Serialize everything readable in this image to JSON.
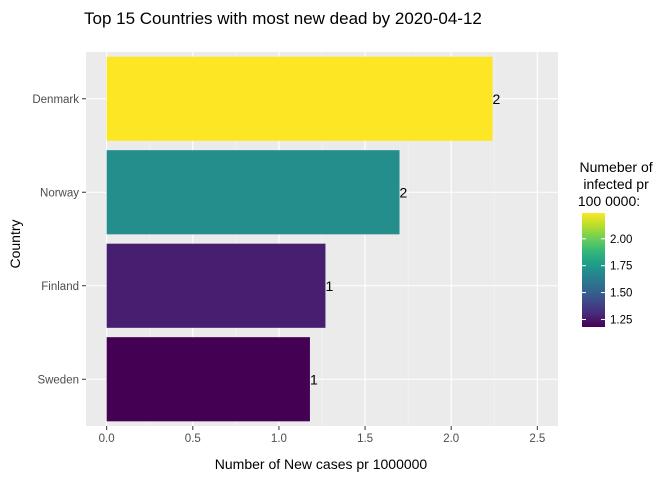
{
  "chart_data": {
    "type": "bar",
    "orientation": "horizontal",
    "title": "Top 15 Countries with most new dead by 2020-04-12",
    "xlabel": "Number of New cases pr 1000000",
    "ylabel": "Country",
    "categories": [
      "Denmark",
      "Norway",
      "Finland",
      "Sweden"
    ],
    "values": [
      2.24,
      1.7,
      1.27,
      1.18
    ],
    "data_labels": [
      "2",
      "2",
      "1",
      "1"
    ],
    "xlim": [
      -0.12,
      2.62
    ],
    "xticks": [
      0.0,
      0.5,
      1.0,
      1.5,
      2.0,
      2.5
    ],
    "xtick_labels": [
      "0.0",
      "0.5",
      "1.0",
      "1.5",
      "2.0",
      "2.5"
    ],
    "grid": true,
    "legend": {
      "title_lines": [
        "Numeber of",
        "infected pr",
        "100 0000:"
      ],
      "type": "colorbar",
      "position": "right",
      "range": [
        1.18,
        2.24
      ],
      "ticks": [
        1.25,
        1.5,
        1.75,
        2.0
      ],
      "tick_labels": [
        "1.25",
        "1.50",
        "1.75",
        "2.00"
      ]
    },
    "colors": {
      "panel_background": "#ebebeb",
      "grid_major": "#ffffff",
      "grid_minor": "#f5f5f5",
      "viridis_stops": [
        "#440154",
        "#482878",
        "#3e4989",
        "#31688e",
        "#26828e",
        "#1f9e89",
        "#35b779",
        "#6ece58",
        "#b5de2b",
        "#fde725"
      ]
    }
  }
}
